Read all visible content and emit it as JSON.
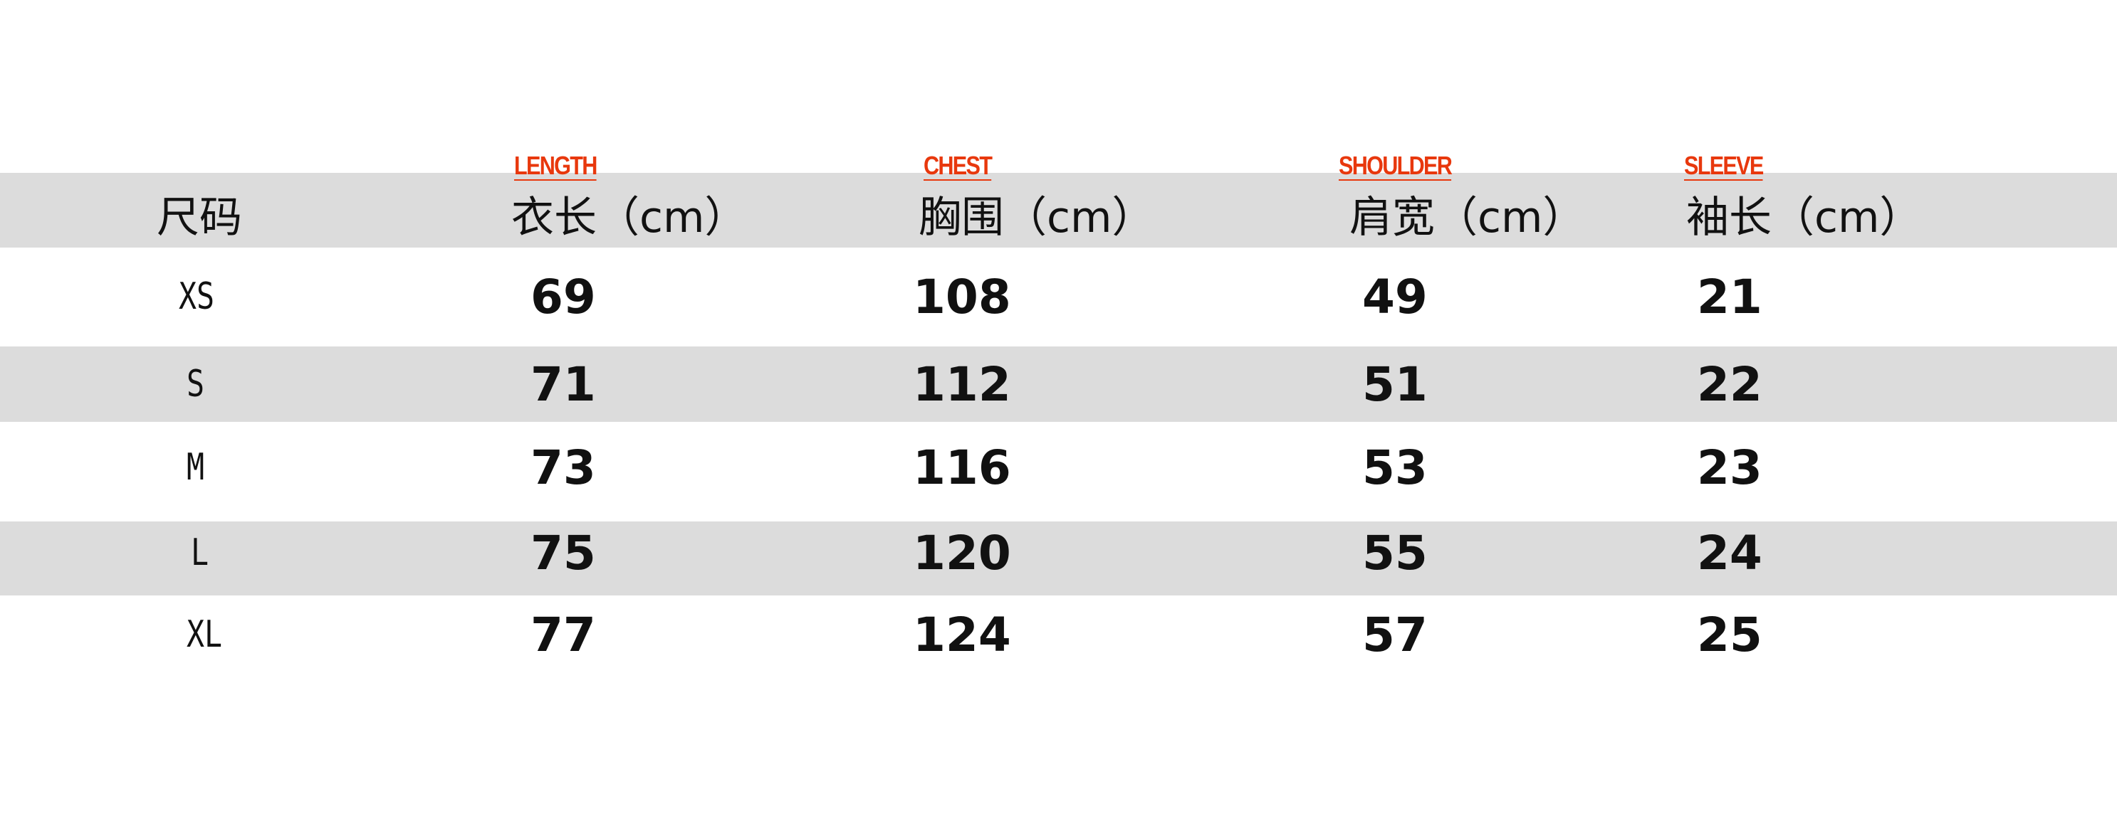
{
  "colors": {
    "band": "#dcdcdc",
    "english_label": "#e8380d",
    "text": "#111111"
  },
  "columns": [
    {
      "english": "",
      "header": "尺码"
    },
    {
      "english": "LENGTH",
      "header": "衣长（cm）"
    },
    {
      "english": "CHEST",
      "header": "胸围（cm）"
    },
    {
      "english": "SHOULDER",
      "header": "肩宽（cm）"
    },
    {
      "english": "SLEEVE",
      "header": "袖长（cm）"
    }
  ],
  "rows": [
    [
      "XS",
      "69",
      "108",
      "49",
      "21"
    ],
    [
      "S",
      "71",
      "112",
      "51",
      "22"
    ],
    [
      "M",
      "73",
      "116",
      "53",
      "23"
    ],
    [
      "L",
      "75",
      "120",
      "55",
      "24"
    ],
    [
      "XL",
      "77",
      "124",
      "57",
      "25"
    ]
  ]
}
